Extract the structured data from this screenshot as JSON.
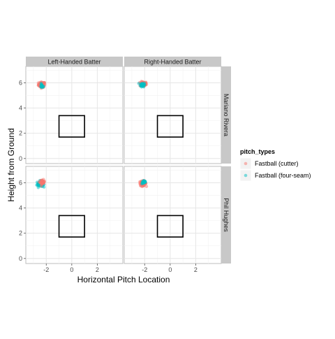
{
  "chart_data": {
    "type": "scatter",
    "xlabel": "Horizontal Pitch Location",
    "ylabel": "Height from Ground",
    "xlim": [
      -3.6,
      4.0
    ],
    "ylim": [
      -0.4,
      7.3
    ],
    "x_ticks": [
      -2,
      0,
      2
    ],
    "y_ticks": [
      0,
      2,
      4,
      6
    ],
    "grid": true,
    "facet_columns": [
      "Left-Handed Batter",
      "Right-Handed Batter"
    ],
    "facet_rows": [
      "Mariano Rivera",
      "Phil Hughes"
    ],
    "strike_zone": {
      "x": [
        -1.0,
        1.0
      ],
      "y": [
        1.7,
        3.4
      ]
    },
    "legend": {
      "title": "pitch_types",
      "position": "right",
      "entries": [
        {
          "name": "Fastball (cutter)",
          "color": "#F8766D"
        },
        {
          "name": "Fastball (four-seam)",
          "color": "#00BFC4"
        }
      ]
    },
    "clusters": [
      {
        "row": 0,
        "col": 0,
        "series": "Fastball (cutter)",
        "center": [
          -2.35,
          5.85
        ],
        "spread": [
          0.22,
          0.18
        ],
        "count": 70
      },
      {
        "row": 0,
        "col": 0,
        "series": "Fastball (four-seam)",
        "center": [
          -2.35,
          5.75
        ],
        "spread": [
          0.12,
          0.14
        ],
        "count": 15
      },
      {
        "row": 0,
        "col": 1,
        "series": "Fastball (cutter)",
        "center": [
          -2.1,
          5.9
        ],
        "spread": [
          0.22,
          0.16
        ],
        "count": 60
      },
      {
        "row": 0,
        "col": 1,
        "series": "Fastball (four-seam)",
        "center": [
          -2.15,
          5.85
        ],
        "spread": [
          0.15,
          0.14
        ],
        "count": 40
      },
      {
        "row": 1,
        "col": 0,
        "series": "Fastball (four-seam)",
        "center": [
          -2.5,
          5.9
        ],
        "spread": [
          0.2,
          0.2
        ],
        "count": 55
      },
      {
        "row": 1,
        "col": 0,
        "series": "Fastball (cutter)",
        "center": [
          -2.3,
          6.05
        ],
        "spread": [
          0.15,
          0.15
        ],
        "count": 30
      },
      {
        "row": 1,
        "col": 1,
        "series": "Fastball (cutter)",
        "center": [
          -2.15,
          5.95
        ],
        "spread": [
          0.22,
          0.16
        ],
        "count": 55
      },
      {
        "row": 1,
        "col": 1,
        "series": "Fastball (four-seam)",
        "center": [
          -2.05,
          6.05
        ],
        "spread": [
          0.14,
          0.12
        ],
        "count": 25
      }
    ]
  }
}
